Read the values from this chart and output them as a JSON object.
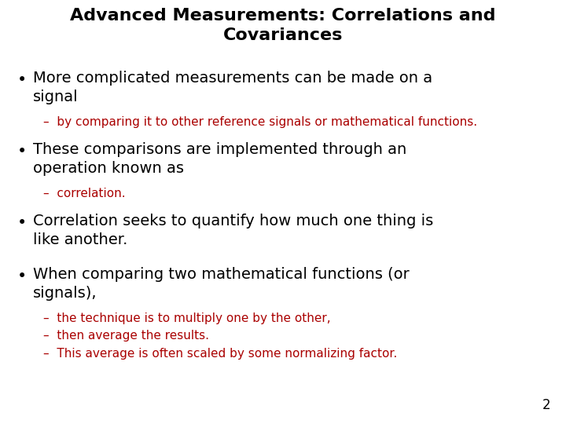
{
  "title_line1": "Advanced Measurements: Correlations and",
  "title_line2": "Covariances",
  "title_fontsize": 16,
  "title_color": "#000000",
  "background_color": "#ffffff",
  "page_number": "2",
  "bullet_color": "#000000",
  "bullet_fontsize": 14,
  "sub_bullet_fontsize": 11,
  "content": [
    {
      "text": "More complicated measurements can be made on a\nsignal",
      "color": "#000000",
      "fontsize": 14,
      "sub": [
        {
          "text": "–  by comparing it to other reference signals or mathematical functions.",
          "color": "#aa0000",
          "fontsize": 11
        }
      ]
    },
    {
      "text": "These comparisons are implemented through an\noperation known as",
      "color": "#000000",
      "fontsize": 14,
      "sub": [
        {
          "text": "–  correlation.",
          "color": "#aa0000",
          "fontsize": 11
        }
      ]
    },
    {
      "text": "Correlation seeks to quantify how much one thing is\nlike another.",
      "color": "#000000",
      "fontsize": 14,
      "sub": []
    },
    {
      "text": "When comparing two mathematical functions (or\nsignals),",
      "color": "#000000",
      "fontsize": 14,
      "sub": [
        {
          "text": "–  the technique is to multiply one by the other,",
          "color": "#aa0000",
          "fontsize": 11
        },
        {
          "text": "–  then average the results.",
          "color": "#aa0000",
          "fontsize": 11
        },
        {
          "text": "–  This average is often scaled by some normalizing factor.",
          "color": "#aa0000",
          "fontsize": 11
        }
      ]
    }
  ]
}
